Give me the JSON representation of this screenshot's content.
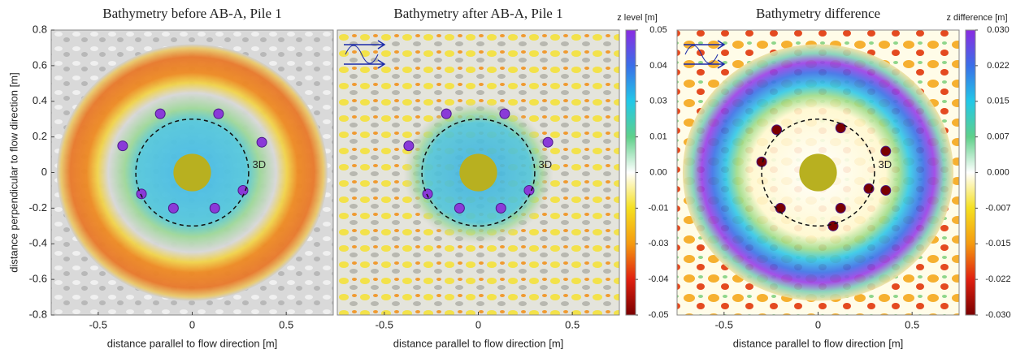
{
  "chart_data": [
    {
      "type": "heatmap",
      "title": "Bathymetry before AB-A, Pile 1",
      "xlabel": "distance parallel to flow direction [m]",
      "ylabel": "distance perpendicular to flow direction [m]",
      "xlim": [
        -0.75,
        0.75
      ],
      "ylim": [
        -0.8,
        0.8
      ],
      "xticks": [
        -0.5,
        0,
        0.5
      ],
      "yticks": [
        0.8,
        0.6,
        0.4,
        0.2,
        0,
        -0.2,
        -0.4,
        -0.6,
        -0.8
      ],
      "annotation": "3D"
    },
    {
      "type": "heatmap",
      "title": "Bathymetry after AB-A, Pile 1",
      "xlabel": "distance parallel to flow direction [m]",
      "xlim": [
        -0.75,
        0.75
      ],
      "ylim": [
        -0.8,
        0.8
      ],
      "xticks": [
        -0.5,
        0,
        0.5
      ],
      "annotation": "3D",
      "colorbar": {
        "label": "z level [m]",
        "lim": [
          -0.05,
          0.05
        ],
        "ticks": [
          0.05,
          {
            "value": 0.0375,
            "label": "0.04"
          },
          {
            "value": 0.025,
            "label": "0.03"
          },
          {
            "value": 0.0125,
            "label": "0.01"
          },
          {
            "value": 0,
            "label": "0.00"
          },
          {
            "value": -0.0125,
            "label": "-0.01"
          },
          {
            "value": -0.025,
            "label": "-0.03"
          },
          {
            "value": -0.0375,
            "label": "-0.04"
          },
          -0.05
        ],
        "colormap": [
          "#8b2be2",
          "#3a6fe8",
          "#22c8e8",
          "#5fd08a",
          "#ffffff",
          "#f5e020",
          "#f59a10",
          "#e02010",
          "#7a0000"
        ]
      }
    },
    {
      "type": "heatmap",
      "title": "Bathymetry difference",
      "xlabel": "distance parallel to flow direction [m]",
      "xlim": [
        -0.75,
        0.75
      ],
      "ylim": [
        -0.8,
        0.8
      ],
      "xticks": [
        -0.5,
        0,
        0.5
      ],
      "annotation": "3D",
      "colorbar": {
        "label": "z difference [m]",
        "lim": [
          -0.03,
          0.03
        ],
        "ticks": [
          {
            "value": 0.03,
            "label": "0.030"
          },
          {
            "value": 0.0225,
            "label": "0.022"
          },
          0.015,
          {
            "value": 0.0075,
            "label": "0.007"
          },
          {
            "value": 0,
            "label": "0.000"
          },
          {
            "value": -0.0075,
            "label": "-0.007"
          },
          -0.015,
          {
            "value": -0.0225,
            "label": "-0.022"
          },
          {
            "value": -0.03,
            "label": "-0.030"
          }
        ],
        "colormap": [
          "#8b2be2",
          "#3a6fe8",
          "#22c8e8",
          "#5fd08a",
          "#ffffff",
          "#f5e020",
          "#f59a10",
          "#e02010",
          "#7a0000"
        ]
      }
    }
  ]
}
